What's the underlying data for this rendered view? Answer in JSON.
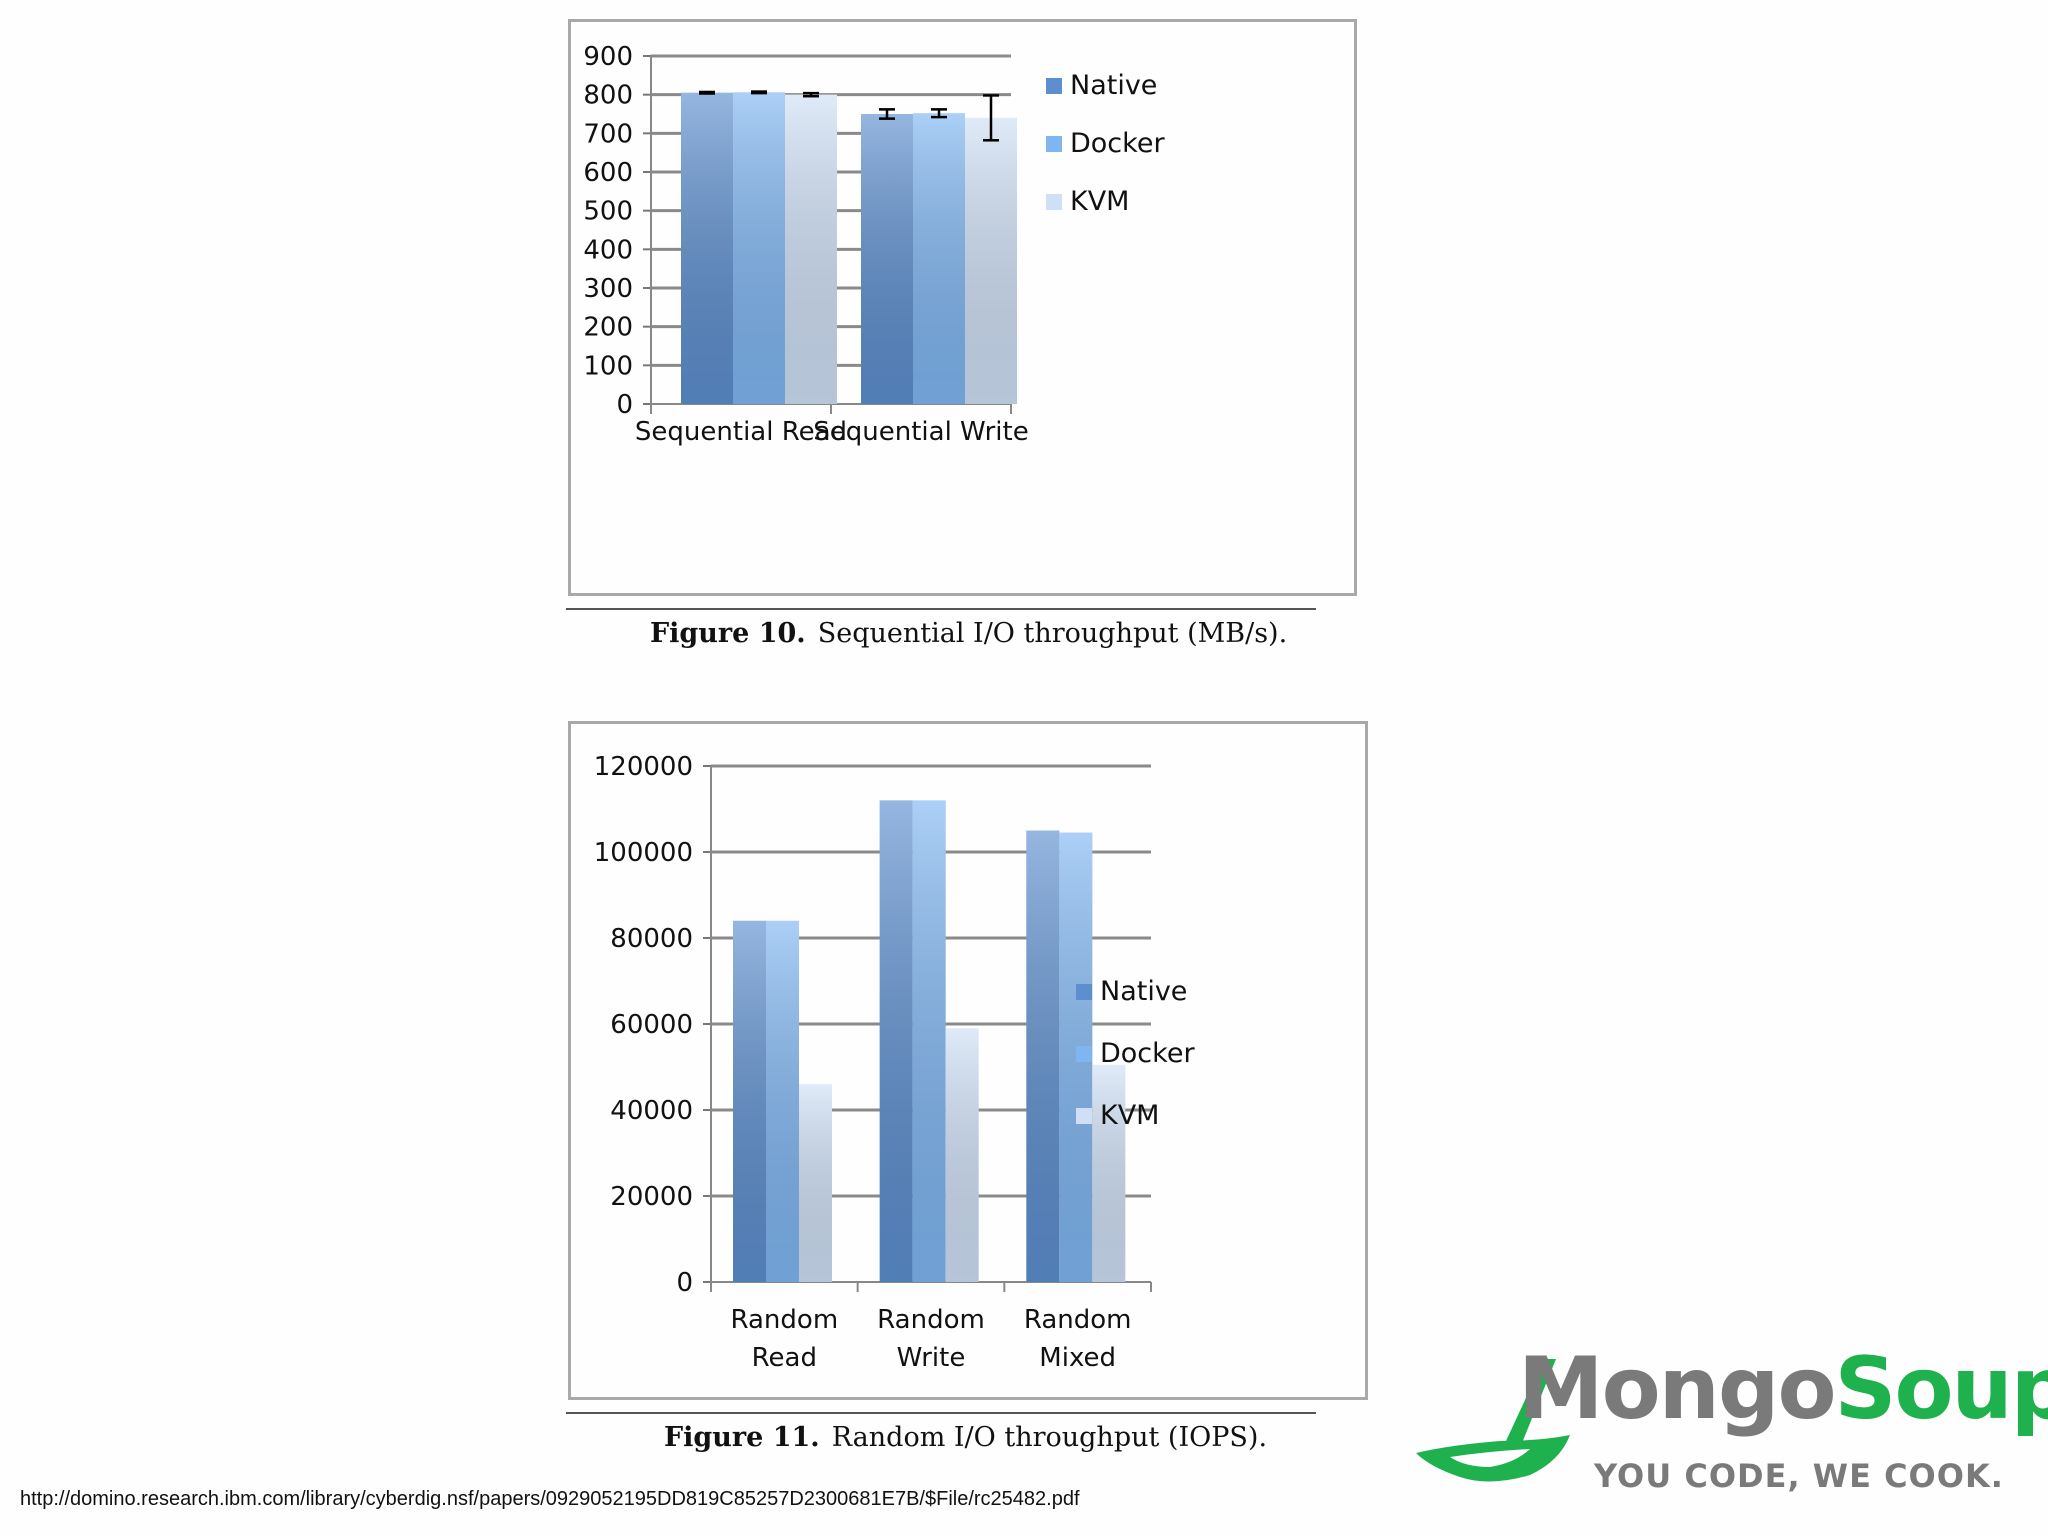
{
  "colors": {
    "native": "#5d8fcf",
    "docker": "#7fb6f2",
    "kvm": "#cfe0f6",
    "grid": "#8a8a8a",
    "brand_grey": "#7a7a7a",
    "brand_green": "#1fb14e"
  },
  "figures": [
    {
      "caption_label": "Figure 10.",
      "caption_text": "Sequential I/O throughput (MB/s)."
    },
    {
      "caption_label": "Figure 11.",
      "caption_text": "Random I/O throughput (IOPS)."
    }
  ],
  "chart_data": [
    {
      "type": "bar",
      "title": "",
      "xlabel": "",
      "ylabel": "",
      "categories": [
        "Sequential Read",
        "Sequential Write"
      ],
      "ylim": [
        0,
        900
      ],
      "yticks": [
        0,
        100,
        200,
        300,
        400,
        500,
        600,
        700,
        800,
        900
      ],
      "grid": true,
      "legend_position": "right",
      "series": [
        {
          "name": "Native",
          "values": [
            805,
            750
          ],
          "error": [
            2,
            12
          ]
        },
        {
          "name": "Docker",
          "values": [
            806,
            752
          ],
          "error": [
            2,
            10
          ]
        },
        {
          "name": "KVM",
          "values": [
            800,
            740
          ],
          "error": [
            4,
            58
          ]
        }
      ]
    },
    {
      "type": "bar",
      "title": "",
      "xlabel": "",
      "ylabel": "",
      "categories": [
        "Random Read",
        "Random Write",
        "Random Mixed"
      ],
      "category_lines": [
        [
          "Random",
          "Read"
        ],
        [
          "Random",
          "Write"
        ],
        [
          "Random",
          "Mixed"
        ]
      ],
      "ylim": [
        0,
        120000
      ],
      "yticks": [
        0,
        20000,
        40000,
        60000,
        80000,
        100000,
        120000
      ],
      "grid": true,
      "legend_position": "right",
      "series": [
        {
          "name": "Native",
          "values": [
            84000,
            112000,
            105000
          ]
        },
        {
          "name": "Docker",
          "values": [
            84000,
            112000,
            104500
          ]
        },
        {
          "name": "KVM",
          "values": [
            46000,
            59000,
            50500
          ]
        }
      ]
    }
  ],
  "footer": {
    "source_url": "http://domino.research.ibm.com/library/cyberdig.nsf/papers/0929052195DD819C85257D2300681E7B/$File/rc25482.pdf"
  },
  "logo": {
    "part1": "Mongo",
    "part2": "Soup",
    "tagline": "YOU CODE, WE COOK."
  }
}
